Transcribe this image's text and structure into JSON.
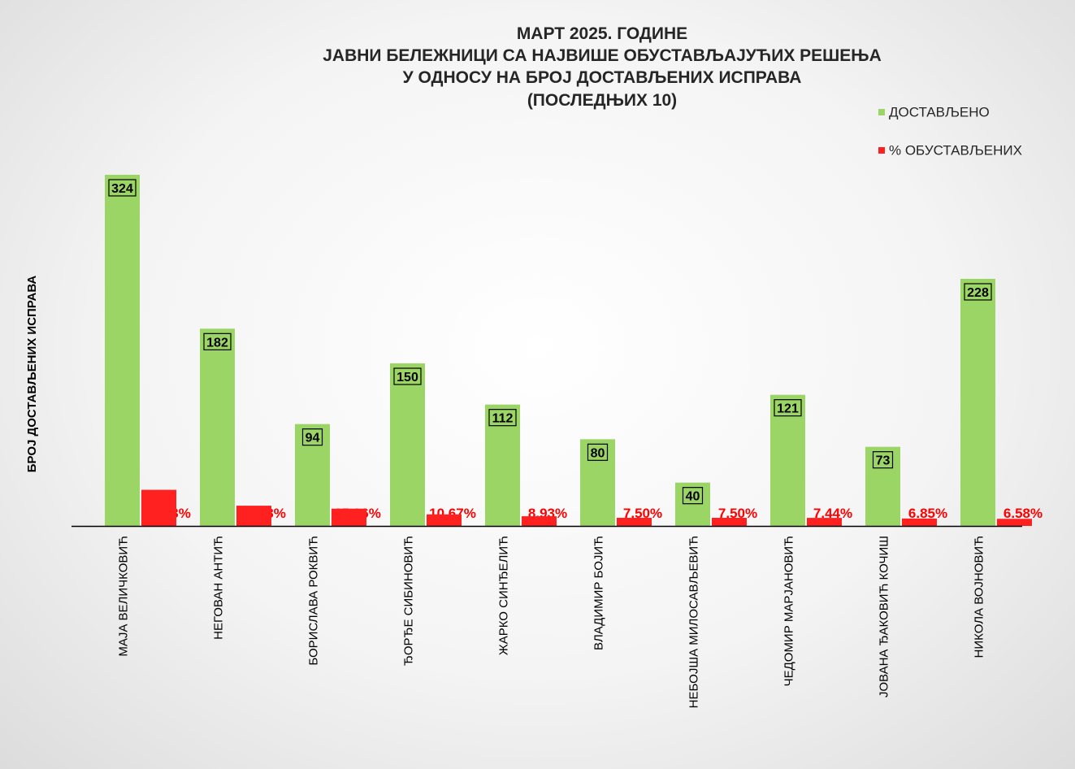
{
  "chart_data": {
    "type": "bar",
    "title": [
      "МАРТ 2025. ГОДИНЕ",
      "ЈАВНИ БЕЛЕЖНИЦИ СА НАЈВИШЕ ОБУСТАВЉАЈУЋИХ РЕШЕЊА",
      "У ОДНОСУ НА БРОЈ ДОСТАВЉЕНИХ ИСПРАВА",
      "(ПОСЛЕДЊИХ 10)"
    ],
    "ylabel": "БРОЈ ДОСТАВЉЕНИХ ИСПРАВА",
    "xlabel": "",
    "ylim": [
      0,
      340
    ],
    "grid": false,
    "legend_position": "top-right",
    "categories": [
      "МАЈА ВЕЛИЧКОВИЋ",
      "НЕГОВАН АНТИЋ",
      "БОРИСЛАВА РОКВИЋ",
      "ЂОРЂЕ СИБИНОВИЋ",
      "ЖАРКО СИНЂЕЛИЋ",
      "ВЛАДИМИР БОЈИЋ",
      "НЕБОЈША МИЛОСАВЉЕВИЋ",
      "ЧЕДОМИР МАРЈАНОВИЋ",
      "ЈОВАНА ЂАКОВИЋ КОЧИШ",
      "НИКОЛА ВОЈНОВИЋ"
    ],
    "series": [
      {
        "name": "ДОСТАВЉЕНО",
        "color": "#9bd565",
        "values": [
          324,
          182,
          94,
          150,
          112,
          80,
          40,
          121,
          73,
          228
        ],
        "labels": [
          "324",
          "182",
          "94",
          "150",
          "112",
          "80",
          "40",
          "121",
          "73",
          "228"
        ]
      },
      {
        "name": "% ОБУСТАВЉЕНИХ",
        "color": "#ff2020",
        "values": [
          33.33,
          18.68,
          15.96,
          10.67,
          8.93,
          7.5,
          7.5,
          7.44,
          6.85,
          6.58
        ],
        "labels": [
          "33.33%",
          "18.68%",
          "15.96%",
          "10.67%",
          "8.93%",
          "7.50%",
          "7.50%",
          "7.44%",
          "6.85%",
          "6.58%"
        ]
      }
    ]
  }
}
